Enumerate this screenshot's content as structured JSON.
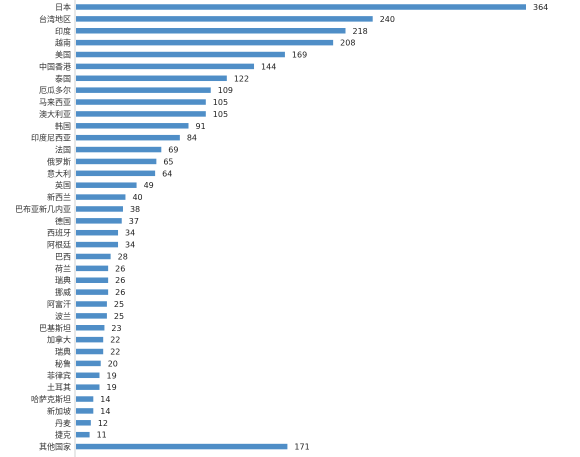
{
  "chart_data": {
    "type": "bar",
    "orientation": "horizontal",
    "title": "",
    "xlabel": "",
    "ylabel": "",
    "xlim": [
      0,
      380
    ],
    "grid": false,
    "legend": "none",
    "bar_color": "#4f8ec7",
    "categories": [
      "日本",
      "台湾地区",
      "印度",
      "越南",
      "美国",
      "中国香港",
      "泰国",
      "厄瓜多尔",
      "马来西亚",
      "澳大利亚",
      "韩国",
      "印度尼西亚",
      "法国",
      "俄罗斯",
      "意大利",
      "英国",
      "新西兰",
      "巴布亚新几内亚",
      "德国",
      "西班牙",
      "阿根廷",
      "巴西",
      "荷兰",
      "瑞典",
      "挪威",
      "阿富汗",
      "波兰",
      "巴基斯坦",
      "加拿大",
      "瑞典",
      "秘鲁",
      "菲律宾",
      "土耳其",
      "哈萨克斯坦",
      "新加坡",
      "丹麦",
      "捷克",
      "其他国家"
    ],
    "values": [
      364,
      240,
      218,
      208,
      169,
      144,
      122,
      109,
      105,
      105,
      91,
      84,
      69,
      65,
      64,
      49,
      40,
      38,
      37,
      34,
      34,
      28,
      26,
      26,
      26,
      25,
      25,
      23,
      22,
      22,
      20,
      19,
      19,
      14,
      14,
      12,
      11,
      171
    ]
  }
}
